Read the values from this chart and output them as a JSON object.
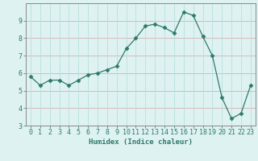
{
  "x": [
    0,
    1,
    2,
    3,
    4,
    5,
    6,
    7,
    8,
    9,
    10,
    11,
    12,
    13,
    14,
    15,
    16,
    17,
    18,
    19,
    20,
    21,
    22,
    23
  ],
  "y": [
    5.8,
    5.3,
    5.6,
    5.6,
    5.3,
    5.6,
    5.9,
    6.0,
    6.2,
    6.4,
    7.4,
    8.0,
    8.7,
    8.8,
    8.6,
    8.3,
    9.5,
    9.3,
    8.1,
    7.0,
    4.6,
    3.4,
    3.7,
    5.3
  ],
  "line_color": "#2d7a6a",
  "marker": "D",
  "marker_size": 2.5,
  "bg_color": "#dff2f2",
  "hgrid_color": "#d4b0b0",
  "vgrid_color": "#b8dede",
  "xlabel": "Humidex (Indice chaleur)",
  "ylim": [
    3,
    10
  ],
  "xlim": [
    -0.5,
    23.5
  ],
  "yticks": [
    3,
    4,
    5,
    6,
    7,
    8,
    9
  ],
  "xticks": [
    0,
    1,
    2,
    3,
    4,
    5,
    6,
    7,
    8,
    9,
    10,
    11,
    12,
    13,
    14,
    15,
    16,
    17,
    18,
    19,
    20,
    21,
    22,
    23
  ],
  "xlabel_fontsize": 6.5,
  "tick_fontsize": 6.0,
  "spine_color": "#888888"
}
